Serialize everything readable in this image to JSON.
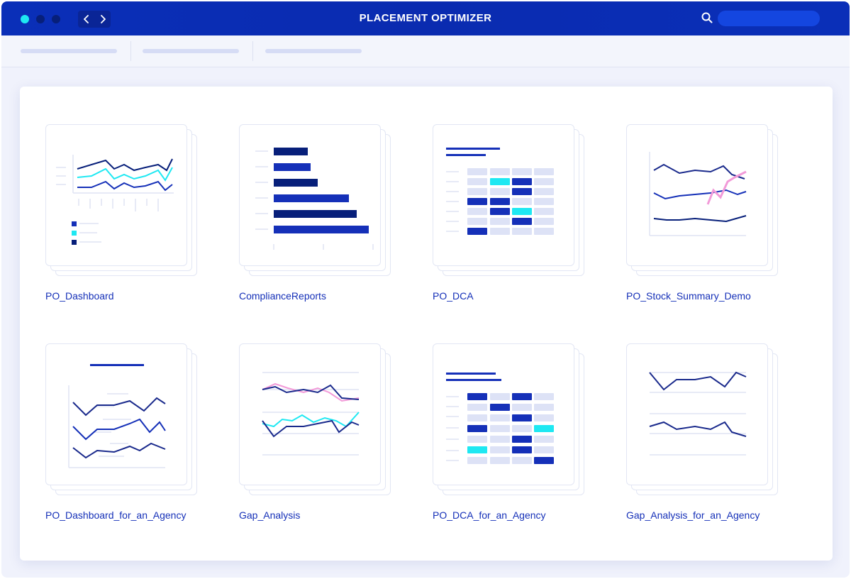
{
  "window": {
    "title": "PLACEMENT OPTIMIZER",
    "traffic_lights": [
      "#1ee8f2",
      "#071f7a",
      "#071f7a"
    ],
    "nav": {
      "back_icon": "chevron-left-icon",
      "forward_icon": "chevron-right-icon"
    },
    "search": {
      "icon": "search-icon",
      "value": "",
      "placeholder": ""
    }
  },
  "colors": {
    "titlebar": "#0a2fb8",
    "accent": "#1530b8",
    "navy": "#071f7a",
    "cyan": "#1ee8f2",
    "pink": "#f29ad8",
    "placeholder": "#d6dcf5"
  },
  "reports": [
    {
      "name": "PO_Dashboard",
      "preview": "multi-line-chart-icon"
    },
    {
      "name": "ComplianceReports",
      "preview": "bar-chart-icon"
    },
    {
      "name": "PO_DCA",
      "preview": "heatmap-grid-icon"
    },
    {
      "name": "PO_Stock_Summary_Demo",
      "preview": "line-chart-icon"
    },
    {
      "name": "PO_Dashboard_for_an_Agency",
      "preview": "multi-line-chart-icon"
    },
    {
      "name": "Gap_Analysis",
      "preview": "line-chart-icon"
    },
    {
      "name": "PO_DCA_for_an_Agency",
      "preview": "heatmap-grid-icon"
    },
    {
      "name": "Gap_Analysis_for_an_Agency",
      "preview": "line-chart-icon"
    }
  ]
}
